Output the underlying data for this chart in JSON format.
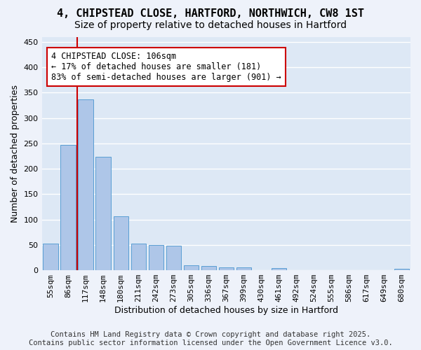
{
  "title_line1": "4, CHIPSTEAD CLOSE, HARTFORD, NORTHWICH, CW8 1ST",
  "title_line2": "Size of property relative to detached houses in Hartford",
  "xlabel": "Distribution of detached houses by size in Hartford",
  "ylabel": "Number of detached properties",
  "bar_values": [
    53,
    247,
    336,
    223,
    106,
    53,
    50,
    49,
    10,
    8,
    6,
    5,
    0,
    4,
    0,
    0,
    0,
    0,
    0,
    0,
    3
  ],
  "categories": [
    "55sqm",
    "86sqm",
    "117sqm",
    "148sqm",
    "180sqm",
    "211sqm",
    "242sqm",
    "273sqm",
    "305sqm",
    "336sqm",
    "367sqm",
    "399sqm",
    "430sqm",
    "461sqm",
    "492sqm",
    "524sqm",
    "555sqm",
    "586sqm",
    "617sqm",
    "649sqm",
    "680sqm"
  ],
  "bar_color": "#aec6e8",
  "bar_edge_color": "#5a9fd4",
  "bg_color": "#dde8f5",
  "grid_color": "#ffffff",
  "annotation_text": "4 CHIPSTEAD CLOSE: 106sqm\n← 17% of detached houses are smaller (181)\n83% of semi-detached houses are larger (901) →",
  "annotation_box_facecolor": "#ffffff",
  "annotation_box_edgecolor": "#cc0000",
  "vline_color": "#cc0000",
  "vline_x": 1.5,
  "ylim": [
    0,
    460
  ],
  "yticks": [
    0,
    50,
    100,
    150,
    200,
    250,
    300,
    350,
    400,
    450
  ],
  "title_fontsize": 11,
  "subtitle_fontsize": 10,
  "axis_label_fontsize": 9,
  "tick_fontsize": 8,
  "annotation_fontsize": 8.5,
  "footer_fontsize": 7.5,
  "footer_line1": "Contains HM Land Registry data © Crown copyright and database right 2025.",
  "footer_line2": "Contains public sector information licensed under the Open Government Licence v3.0."
}
